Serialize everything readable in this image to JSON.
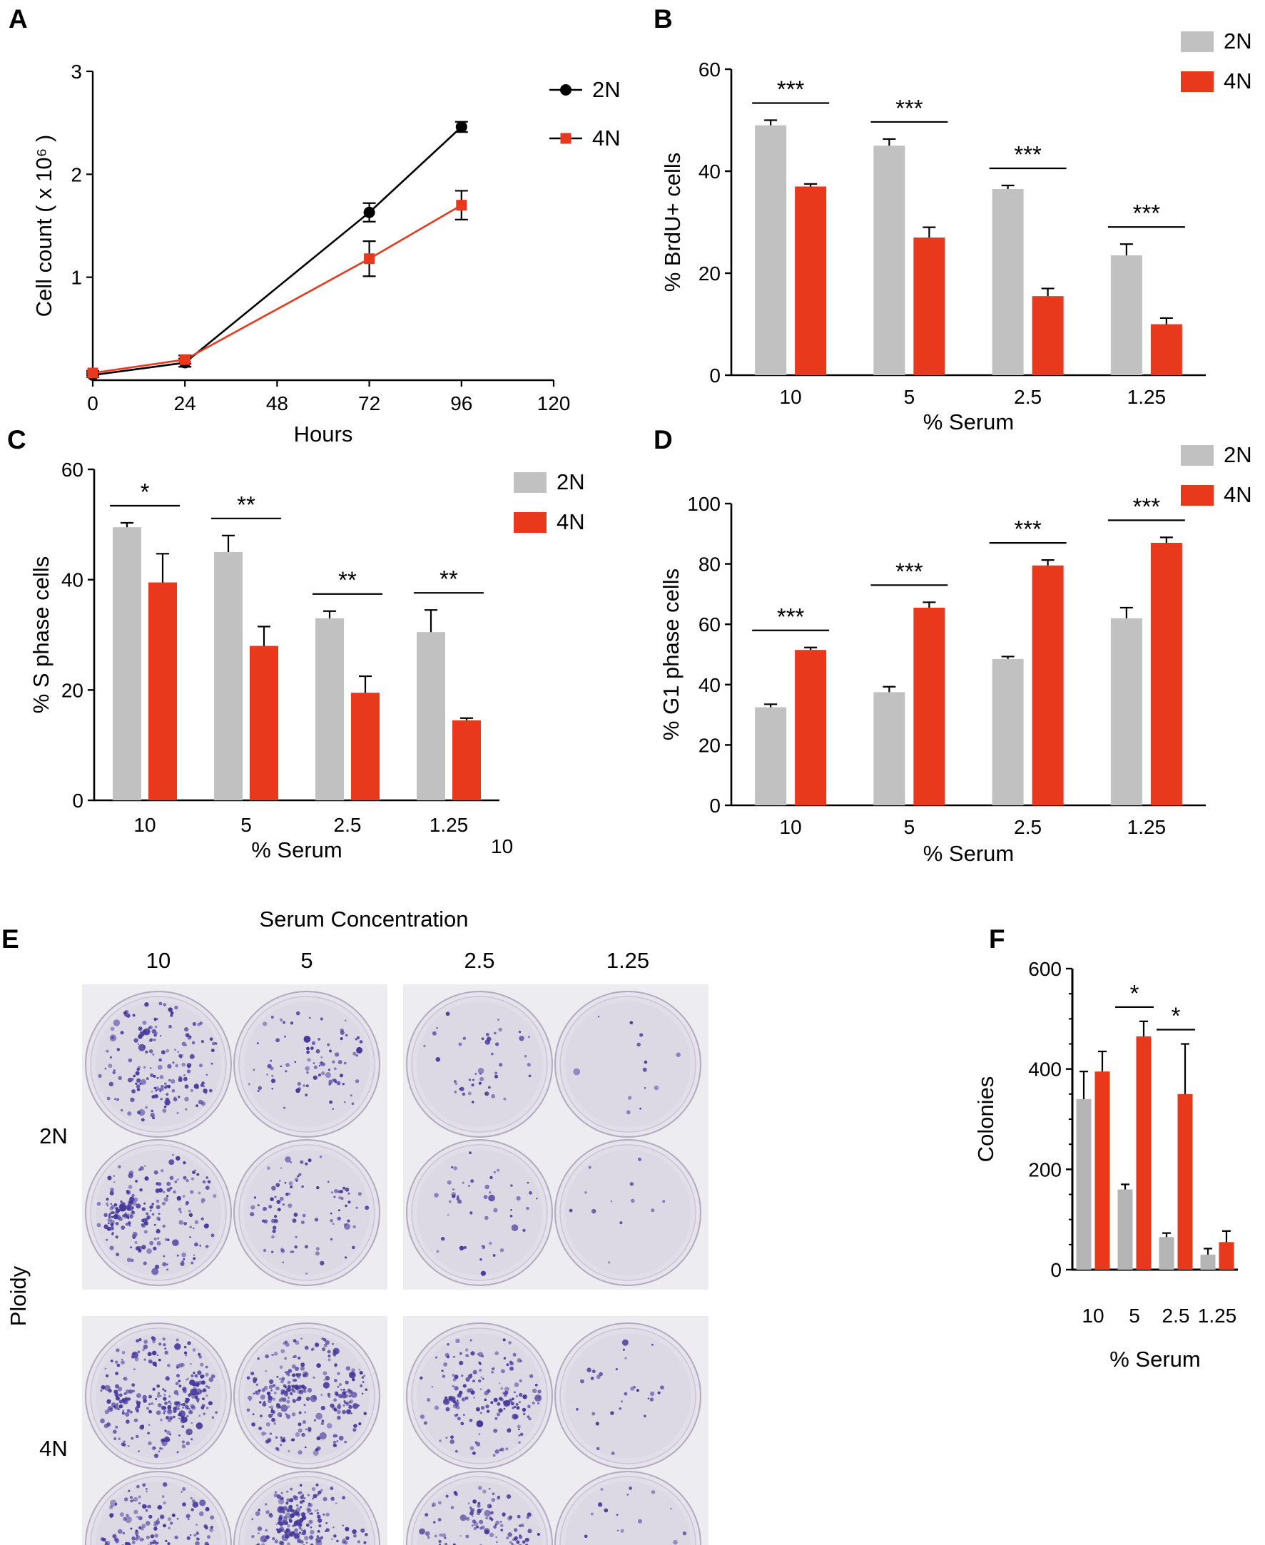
{
  "panels": {
    "A": "A",
    "B": "B",
    "C": "C",
    "D": "D",
    "E": "E",
    "F": "F"
  },
  "colony_assay": {
    "title": "Serum Concentration",
    "column_labels": [
      "10",
      "5",
      "2.5",
      "1.25"
    ],
    "row_axis_label": "Ploidy",
    "rows": [
      {
        "label": "2N",
        "colony_density": [
          200,
          90,
          45,
          12
        ]
      },
      {
        "label": "4N",
        "colony_density": [
          300,
          270,
          160,
          30
        ]
      }
    ],
    "colony_color": "#46399a",
    "dish_fill": "#e1dee9",
    "photo_background": "#edecf1"
  },
  "chart_data": [
    {
      "id": "chart-a",
      "panel": "A",
      "type": "line",
      "xlabel": "Hours",
      "ylabel": "Cell count ( x 10⁶ )",
      "xlim": [
        0,
        120
      ],
      "xticks": [
        0,
        24,
        48,
        72,
        96,
        120
      ],
      "ylim": [
        0,
        3
      ],
      "yticks": [
        1,
        2,
        3
      ],
      "x": [
        0,
        24,
        72,
        96
      ],
      "series": [
        {
          "name": "2N",
          "color": "#000000",
          "marker": "circle",
          "values": [
            0.05,
            0.17,
            1.63,
            2.46
          ],
          "errors": [
            0.02,
            0.04,
            0.09,
            0.05
          ]
        },
        {
          "name": "4N",
          "color": "#e8391d",
          "marker": "square",
          "values": [
            0.07,
            0.2,
            1.18,
            1.7
          ],
          "errors": [
            0.02,
            0.04,
            0.17,
            0.14
          ]
        }
      ],
      "legend_position": "top-right"
    },
    {
      "id": "chart-b",
      "panel": "B",
      "type": "bar",
      "categories": [
        "10",
        "5",
        "2.5",
        "1.25"
      ],
      "series": [
        {
          "name": "2N",
          "color": "#c1c1c1",
          "values": [
            49,
            45,
            36.5,
            23.5
          ],
          "errors": [
            1,
            1.3,
            0.7,
            2.2
          ]
        },
        {
          "name": "4N",
          "color": "#e8391d",
          "values": [
            37,
            27,
            15.5,
            10
          ],
          "errors": [
            0.5,
            2,
            1.5,
            1.2
          ]
        }
      ],
      "significance": [
        "***",
        "***",
        "***",
        "***"
      ],
      "xlabel": "% Serum",
      "ylabel": "% BrdU+ cells",
      "ylim": [
        0,
        60
      ],
      "yticks": [
        0,
        20,
        40,
        60
      ],
      "legend": true
    },
    {
      "id": "chart-c",
      "panel": "C",
      "type": "bar",
      "categories": [
        "10",
        "5",
        "2.5",
        "1.25"
      ],
      "series": [
        {
          "name": "2N",
          "color": "#c1c1c1",
          "values": [
            49.5,
            45,
            33,
            30.5
          ],
          "errors": [
            0.8,
            3,
            1.3,
            4
          ]
        },
        {
          "name": "4N",
          "color": "#e8391d",
          "values": [
            39.5,
            28,
            19.5,
            14.5
          ],
          "errors": [
            5.2,
            3.5,
            3,
            0.4
          ]
        }
      ],
      "significance": [
        "*",
        "**",
        "**",
        "**"
      ],
      "xlabel": "% Serum",
      "ylabel": "% S phase cells",
      "ylim": [
        0,
        60
      ],
      "yticks": [
        0,
        20,
        40,
        60
      ],
      "legend": true,
      "stray_label": "10"
    },
    {
      "id": "chart-d",
      "panel": "D",
      "type": "bar",
      "categories": [
        "10",
        "5",
        "2.5",
        "1.25"
      ],
      "series": [
        {
          "name": "2N",
          "color": "#c1c1c1",
          "values": [
            32.5,
            37.5,
            48.5,
            62
          ],
          "errors": [
            1,
            1.8,
            0.8,
            3.5
          ]
        },
        {
          "name": "4N",
          "color": "#e8391d",
          "values": [
            51.5,
            65.5,
            79.5,
            87
          ],
          "errors": [
            0.8,
            1.8,
            1.8,
            1.8
          ]
        }
      ],
      "significance": [
        "***",
        "***",
        "***",
        "***"
      ],
      "xlabel": "% Serum",
      "ylabel": "% G1 phase cells",
      "ylim": [
        0,
        100
      ],
      "yticks": [
        0,
        20,
        40,
        60,
        80,
        100
      ],
      "legend": true
    },
    {
      "id": "chart-f",
      "panel": "F",
      "type": "bar",
      "categories": [
        "10",
        "5",
        "2.5",
        "1.25"
      ],
      "series": [
        {
          "name": "2N",
          "color": "#b5b5b5",
          "values": [
            340,
            160,
            65,
            30
          ],
          "errors": [
            55,
            10,
            8,
            12
          ]
        },
        {
          "name": "4N",
          "color": "#e8391d",
          "values": [
            395,
            465,
            350,
            55
          ],
          "errors": [
            40,
            30,
            100,
            22
          ]
        }
      ],
      "significance": [
        null,
        "*",
        "*",
        null
      ],
      "xlabel": "% Serum",
      "ylabel": "Colonies",
      "ylim": [
        0,
        600
      ],
      "yticks": [
        0,
        200,
        400,
        600
      ],
      "yminor": 50,
      "legend": false
    }
  ]
}
